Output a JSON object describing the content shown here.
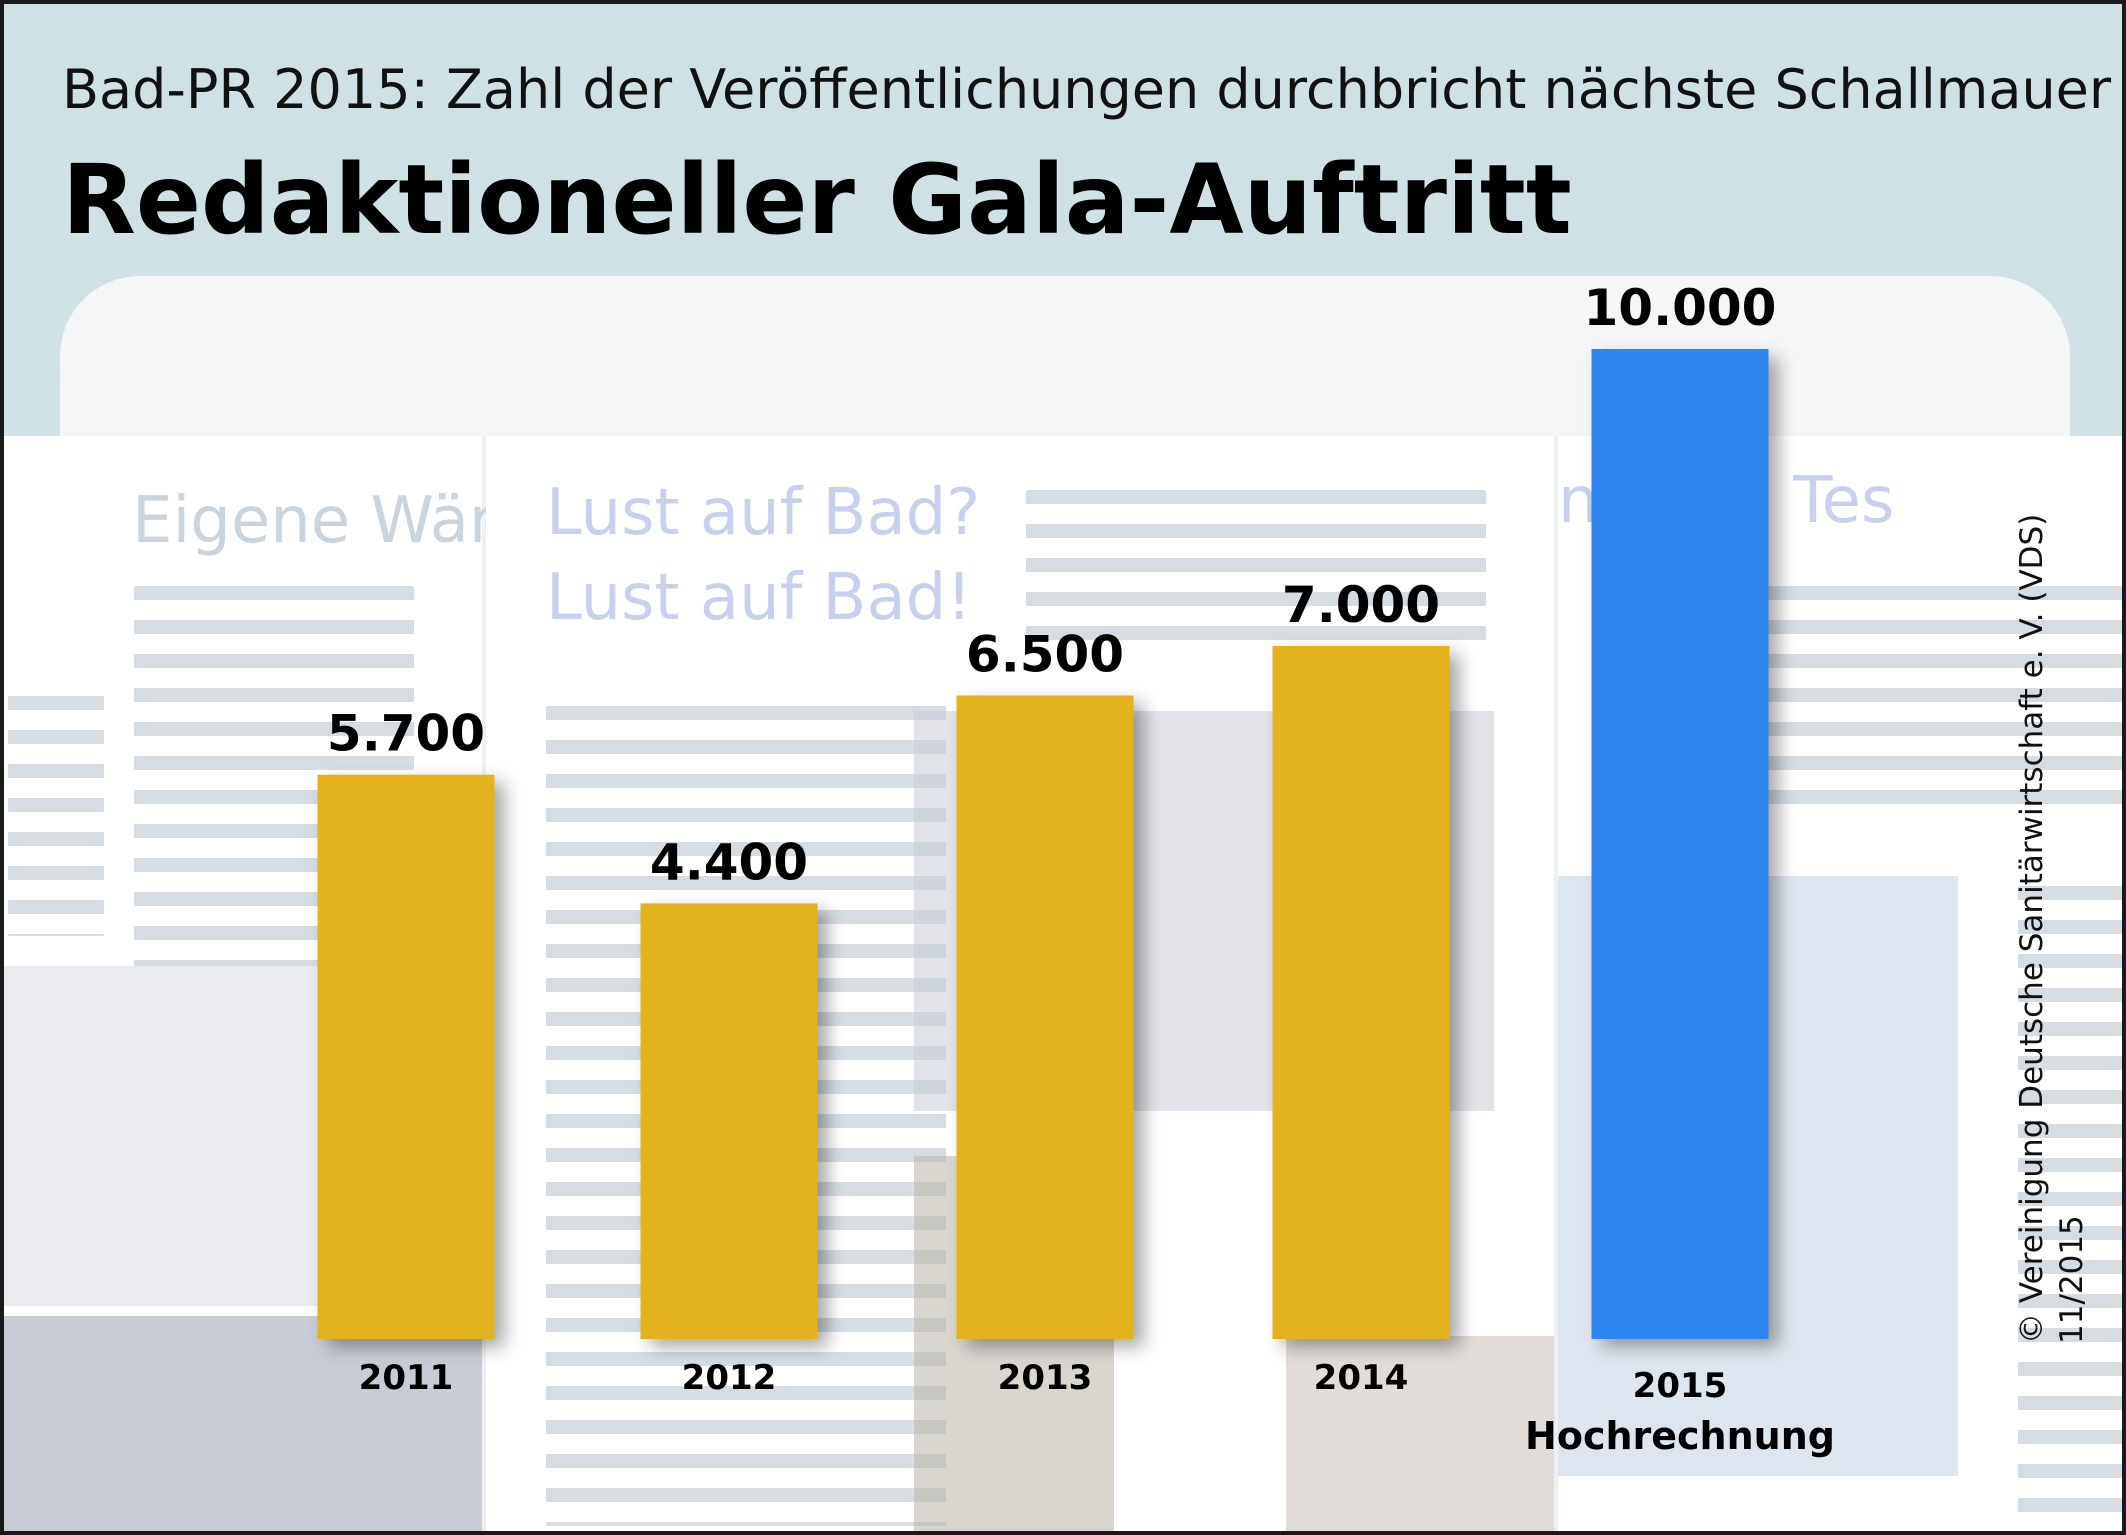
{
  "header": {
    "subtitle": "Bad-PR 2015: Zahl der Veröffentlichungen durchbricht nächste Schallmauer",
    "title": "Redaktioneller Gala-Auftritt"
  },
  "backdrop": {
    "left_heading": "Eigene Wär",
    "center_heading_1": "Lust auf Bad?",
    "center_heading_2": "Lust auf Bad!",
    "right_heading": "nds im Tes"
  },
  "colors": {
    "header_band": "#cfe1e4",
    "bar_actual": "#e2b31c",
    "bar_projection": "#2f86ef"
  },
  "chart_data": {
    "type": "bar",
    "title": "Redaktioneller Gala-Auftritt",
    "subtitle": "Bad-PR 2015: Zahl der Veröffentlichungen durchbricht nächste Schallmauer",
    "categories": [
      "2011",
      "2012",
      "2013",
      "2014",
      "2015"
    ],
    "category_notes": [
      "",
      "",
      "",
      "",
      "Hochrechnung"
    ],
    "values": [
      5700,
      4400,
      6500,
      7000,
      10000
    ],
    "value_labels": [
      "5.700",
      "4.400",
      "6.500",
      "7.000",
      "10.000"
    ],
    "bar_colors": [
      "#e2b31c",
      "#e2b31c",
      "#e2b31c",
      "#e2b31c",
      "#2f86ef"
    ],
    "ylim": [
      0,
      10000
    ],
    "xlabel": "",
    "ylabel": "",
    "grid": false,
    "legend": "none"
  },
  "credit": {
    "line1": "© Vereinigung Deutsche Sanitärwirtschaft e. V. (VDS)",
    "line2": "11/2015"
  }
}
